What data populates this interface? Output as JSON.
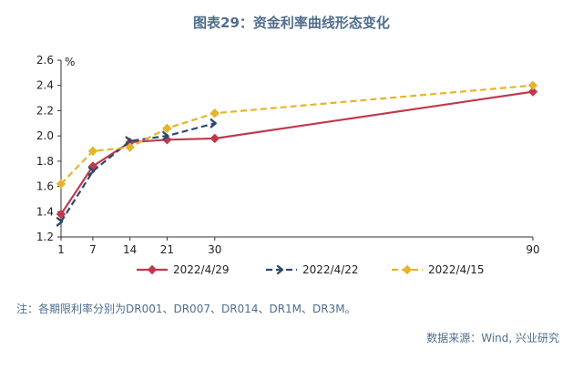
{
  "page": {
    "title": "图表29：资金利率曲线形态变化",
    "note": "注：各期限利率分别为DR001、DR007、DR014、DR1M、DR3M。",
    "source": "数据来源：Wind, 兴业研究"
  },
  "chart_data": {
    "type": "line",
    "title": "图表29：资金利率曲线形态变化",
    "ylabel": "%",
    "xlabel": "",
    "x": [
      1,
      7,
      14,
      21,
      30,
      90
    ],
    "xticks": [
      "1",
      "7",
      "14",
      "21",
      "30",
      "90"
    ],
    "xlim": [
      1,
      90
    ],
    "ylim": [
      1.2,
      2.6
    ],
    "yticks": [
      "1.2",
      "1.4",
      "1.6",
      "1.8",
      "2.0",
      "2.2",
      "2.4",
      "2.6"
    ],
    "grid": false,
    "legend": "bottom",
    "series": [
      {
        "name": "2022/4/29",
        "color": "#c0394b",
        "dash": "solid",
        "marker": "diamond",
        "x": [
          1,
          7,
          14,
          21,
          30,
          90
        ],
        "values": [
          1.38,
          1.76,
          1.95,
          1.97,
          1.98,
          2.35
        ]
      },
      {
        "name": "2022/4/22",
        "color": "#2e4a6b",
        "dash": "dashed",
        "marker": "chevron",
        "x": [
          1,
          7,
          14,
          21,
          30
        ],
        "values": [
          1.32,
          1.72,
          1.96,
          2.0,
          2.1
        ]
      },
      {
        "name": "2022/4/15",
        "color": "#e6b32c",
        "dash": "dashed",
        "marker": "diamond",
        "x": [
          1,
          7,
          14,
          21,
          30,
          90
        ],
        "values": [
          1.62,
          1.88,
          1.91,
          2.06,
          2.18,
          2.4
        ]
      }
    ]
  }
}
